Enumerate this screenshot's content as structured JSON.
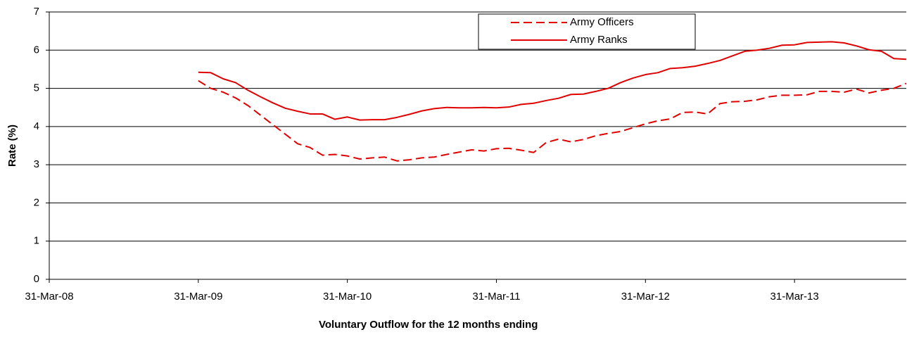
{
  "chart_data": {
    "type": "line",
    "ylabel": "Rate (%)",
    "xlabel": "Voluntary Outflow for the 12 months ending",
    "categories": [
      "31-Mar-08",
      null,
      null,
      null,
      null,
      null,
      null,
      null,
      null,
      null,
      null,
      null,
      "31-Mar-09",
      null,
      null,
      null,
      null,
      null,
      null,
      null,
      null,
      null,
      null,
      null,
      "31-Mar-10",
      null,
      null,
      null,
      null,
      null,
      null,
      null,
      null,
      null,
      null,
      null,
      "31-Mar-11",
      null,
      null,
      null,
      null,
      null,
      null,
      null,
      null,
      null,
      null,
      null,
      "31-Mar-12",
      null,
      null,
      null,
      null,
      null,
      null,
      null,
      null,
      null,
      null,
      null,
      "31-Mar-13",
      null,
      null,
      null,
      null,
      null,
      null,
      null,
      null,
      null
    ],
    "series": [
      {
        "name": "Army Officers",
        "color": "#e00000",
        "dashed": true,
        "values": [
          null,
          null,
          null,
          null,
          null,
          null,
          null,
          null,
          null,
          null,
          null,
          null,
          5.2,
          5.0,
          4.9,
          4.75,
          4.55,
          4.3,
          4.05,
          3.8,
          3.55,
          3.45,
          3.25,
          3.27,
          3.23,
          3.15,
          3.18,
          3.2,
          3.1,
          3.13,
          3.18,
          3.2,
          3.27,
          3.33,
          3.39,
          3.36,
          3.42,
          3.43,
          3.38,
          3.32,
          3.58,
          3.67,
          3.6,
          3.66,
          3.76,
          3.82,
          3.87,
          3.97,
          4.07,
          4.15,
          4.2,
          4.37,
          4.38,
          4.33,
          4.6,
          4.65,
          4.66,
          4.7,
          4.78,
          4.82,
          4.82,
          4.83,
          4.92,
          4.92,
          4.9,
          4.98,
          4.88,
          4.95,
          5.0,
          5.13
        ]
      },
      {
        "name": "Army Ranks",
        "color": "#e00000",
        "dashed": false,
        "values": [
          null,
          null,
          null,
          null,
          null,
          null,
          null,
          null,
          null,
          null,
          null,
          null,
          5.42,
          5.41,
          5.25,
          5.15,
          4.95,
          4.78,
          4.62,
          4.48,
          4.4,
          4.33,
          4.33,
          4.19,
          4.25,
          4.17,
          4.18,
          4.18,
          4.24,
          4.32,
          4.41,
          4.47,
          4.5,
          4.49,
          4.49,
          4.5,
          4.49,
          4.51,
          4.58,
          4.61,
          4.68,
          4.74,
          4.84,
          4.85,
          4.92,
          5.0,
          5.15,
          5.27,
          5.36,
          5.41,
          5.52,
          5.54,
          5.58,
          5.65,
          5.73,
          5.85,
          5.97,
          6.0,
          6.05,
          6.13,
          6.14,
          6.2,
          6.21,
          6.22,
          6.19,
          6.11,
          6.01,
          5.97,
          5.78,
          5.76
        ]
      }
    ],
    "ylim": [
      0,
      7
    ],
    "yticks": [
      0,
      1,
      2,
      3,
      4,
      5,
      6,
      7
    ],
    "grid": true,
    "legend": "top"
  }
}
